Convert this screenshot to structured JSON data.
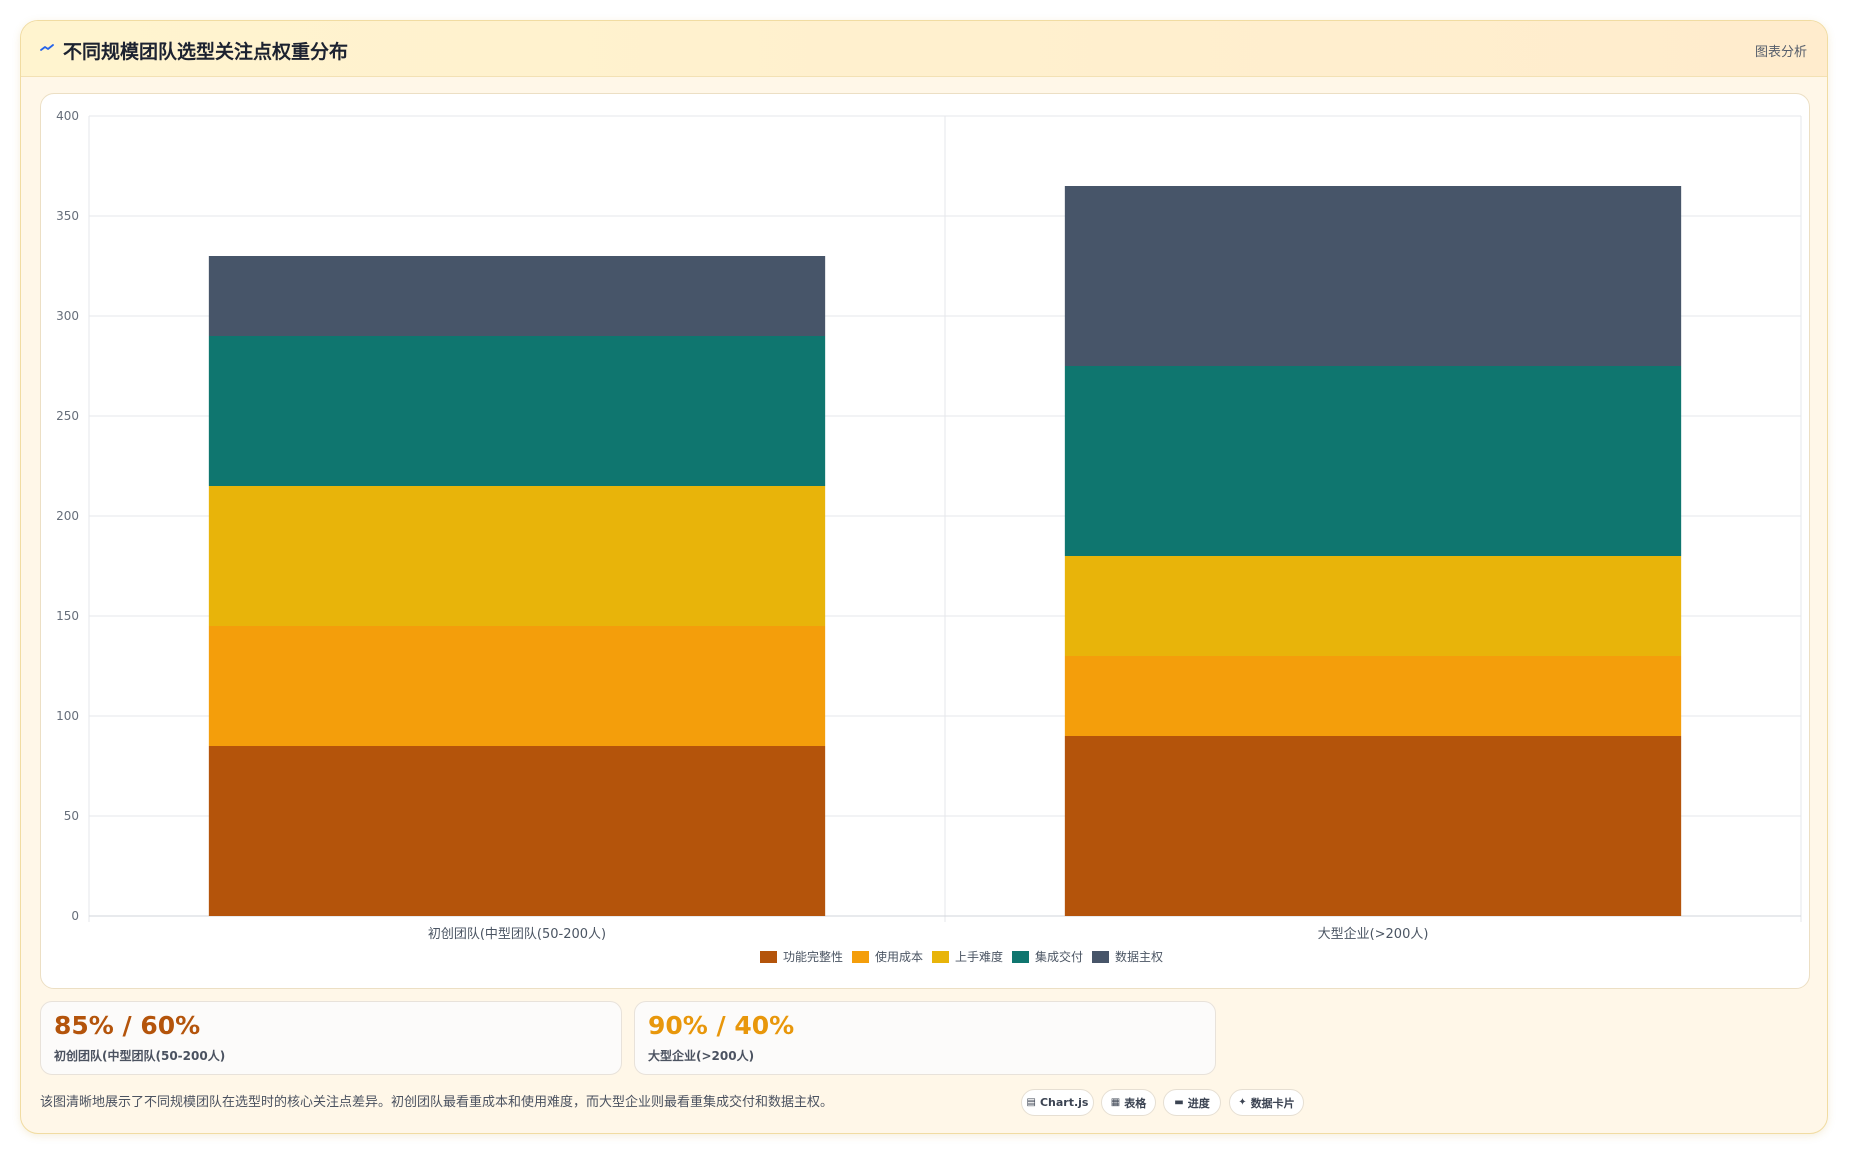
{
  "header": {
    "icon": "trend-line-icon",
    "title": "不同规模团队选型关注点权重分布",
    "tag": "图表分析"
  },
  "chart_data": {
    "type": "bar",
    "stacked": true,
    "categories": [
      "初创团队(中型团队(50-200人)",
      "大型企业(>200人)"
    ],
    "series": [
      {
        "name": "功能完整性",
        "color": "#b4540b",
        "values": [
          85,
          90
        ]
      },
      {
        "name": "使用成本",
        "color": "#f49e0b",
        "values": [
          60,
          40
        ]
      },
      {
        "name": "上手难度",
        "color": "#e8b40a",
        "values": [
          70,
          50
        ]
      },
      {
        "name": "集成交付",
        "color": "#0f766f",
        "values": [
          75,
          95
        ]
      },
      {
        "name": "数据主权",
        "color": "#475569",
        "values": [
          40,
          90
        ]
      }
    ],
    "ylim": [
      0,
      400
    ],
    "yticks": [
      0,
      50,
      100,
      150,
      200,
      250,
      300,
      350,
      400
    ],
    "grid": true,
    "legend_position": "bottom",
    "title": "",
    "xlabel": "",
    "ylabel": ""
  },
  "stats": [
    {
      "value": "85% / 60%",
      "label": "初创团队(中型团队(50-200人)",
      "color": "#b4540b"
    },
    {
      "value": "90% / 40%",
      "label": "大型企业(>200人)",
      "color": "#e8970b"
    }
  ],
  "summary": "该图清晰地展示了不同规模团队在选型时的核心关注点差异。初创团队最看重成本和使用难度，而大型企业则最看重集成交付和数据主权。",
  "chips": [
    {
      "icon": "chart-icon",
      "glyph": "▤",
      "label": "Chart.js"
    },
    {
      "icon": "table-icon",
      "glyph": "▦",
      "label": "表格"
    },
    {
      "icon": "progress-icon",
      "glyph": "▬",
      "label": "进度"
    },
    {
      "icon": "sparkle-icon",
      "glyph": "✦",
      "label": "数据卡片"
    }
  ]
}
